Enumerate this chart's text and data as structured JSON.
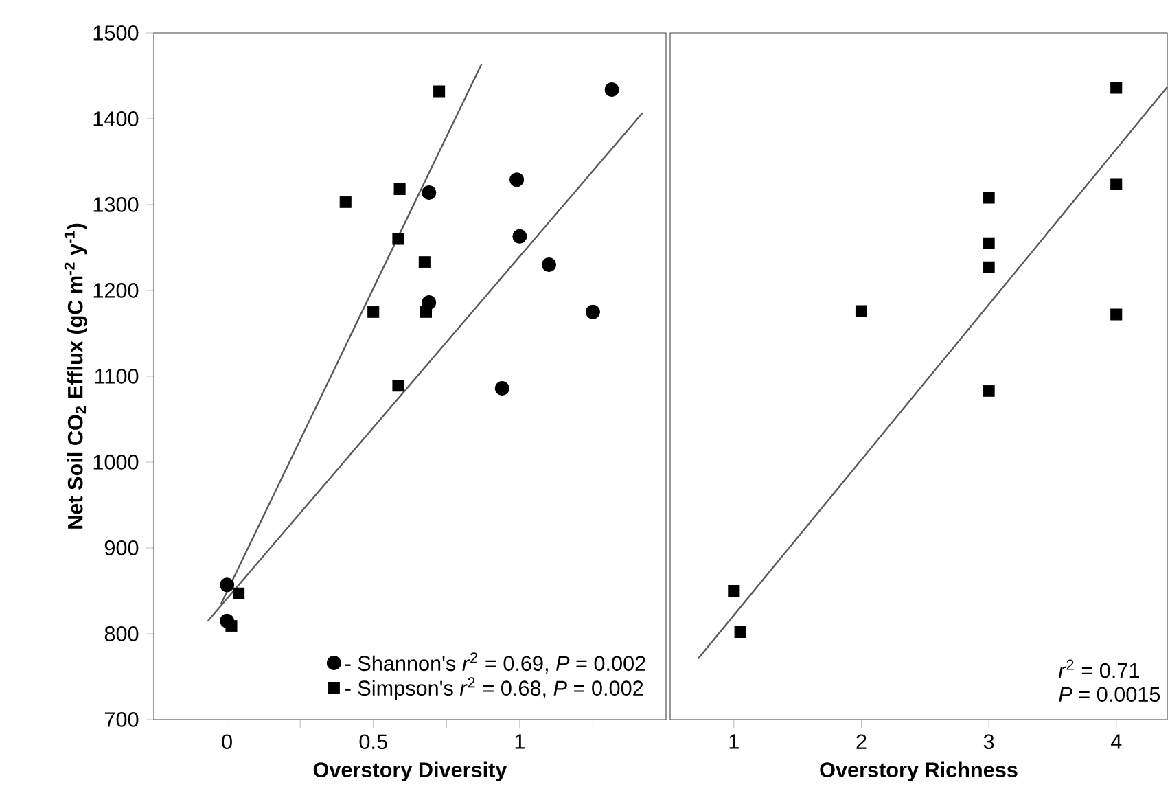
{
  "chart_data": [
    {
      "type": "scatter",
      "xlabel": "Overstory  Diversity",
      "ylabel": "Net Soil CO$_{2}$ Efflux (gC m$^{-2}$ y$^{-1}$)",
      "xlim": [
        -0.25,
        1.5
      ],
      "ylim": [
        700,
        1500
      ],
      "xticks": [
        0,
        {
          "value": 0.25,
          "label": null
        },
        0.5,
        {
          "value": 0.75,
          "label": null
        },
        1,
        {
          "value": 1.25,
          "label": null
        }
      ],
      "yticks": [
        700,
        800,
        900,
        1000,
        1100,
        1200,
        1300,
        1400,
        1500
      ],
      "legend": "bottom right",
      "series": [
        {
          "name": "- Shannon's *r*$^{2}$ = 0.69, *P* = 0.002",
          "color": "#000000",
          "marker": "circle",
          "x": [
            1.315,
            0.99,
            0.69,
            1.0,
            1.1,
            0.69,
            1.25,
            0.94,
            0,
            0
          ],
          "values": [
            1434,
            1329,
            1314,
            1263,
            1230,
            1186,
            1175,
            1086,
            857,
            815
          ]
        },
        {
          "name": "- Simpson's  *r*$^{2}$ = 0.68, *P* = 0.002",
          "color": "#000000",
          "marker": "square",
          "x": [
            0.725,
            0.405,
            0.59,
            0.585,
            0.675,
            0.5,
            0.68,
            0.585,
            0.04,
            0.015
          ],
          "values": [
            1432,
            1303,
            1318,
            1260,
            1233,
            1175,
            1175,
            1089,
            847,
            809
          ]
        },
        {
          "type": "line",
          "color": "#595959",
          "marker": "none",
          "line_style": "solid",
          "x": [
            -0.02,
            0.87
          ],
          "values": [
            835,
            1464
          ]
        },
        {
          "type": "line",
          "color": "#595959",
          "marker": "none",
          "line_style": "solid",
          "x": [
            -0.065,
            1.42
          ],
          "values": [
            815,
            1407
          ]
        }
      ]
    },
    {
      "type": "scatter",
      "xlabel": "Overstory  Richness",
      "xlim": [
        0.5,
        4.4
      ],
      "ylim": [
        700,
        1500
      ],
      "xticks": [
        1,
        2,
        3,
        4
      ],
      "yticks": [
        700,
        800,
        900,
        1000,
        1100,
        1200,
        1300,
        1400,
        1500
      ],
      "tick_labels": "x",
      "annotations": [
        "*r*$^{2}$ = 0.71",
        "*P* = 0.0015"
      ],
      "series": [
        {
          "color": "#000000",
          "marker": "square",
          "x": [
            1,
            1.05,
            2,
            3,
            3,
            3,
            3,
            4,
            4,
            4
          ],
          "values": [
            850,
            802,
            1176,
            1308,
            1255,
            1227,
            1083,
            1436,
            1324,
            1172
          ]
        },
        {
          "type": "line",
          "color": "#595959",
          "marker": "none",
          "line_style": "solid",
          "x": [
            0.72,
            4.4
          ],
          "values": [
            771,
            1437
          ]
        }
      ]
    }
  ]
}
